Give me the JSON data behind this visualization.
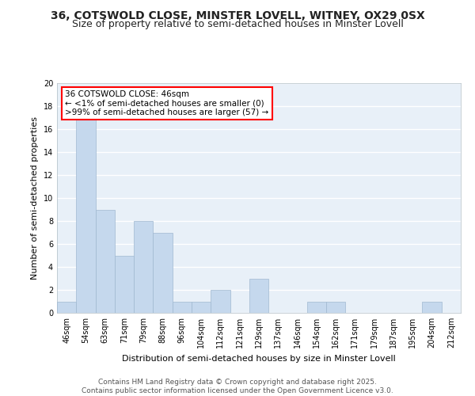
{
  "title": "36, COTSWOLD CLOSE, MINSTER LOVELL, WITNEY, OX29 0SX",
  "subtitle": "Size of property relative to semi-detached houses in Minster Lovell",
  "xlabel": "Distribution of semi-detached houses by size in Minster Lovell",
  "ylabel": "Number of semi-detached properties",
  "categories": [
    "46sqm",
    "54sqm",
    "63sqm",
    "71sqm",
    "79sqm",
    "88sqm",
    "96sqm",
    "104sqm",
    "112sqm",
    "121sqm",
    "129sqm",
    "137sqm",
    "146sqm",
    "154sqm",
    "162sqm",
    "171sqm",
    "179sqm",
    "187sqm",
    "195sqm",
    "204sqm",
    "212sqm"
  ],
  "values": [
    1,
    17,
    9,
    5,
    8,
    7,
    1,
    1,
    2,
    0,
    3,
    0,
    0,
    1,
    1,
    0,
    0,
    0,
    0,
    1,
    0
  ],
  "bar_color": "#c5d8ed",
  "bar_edge_color": "#a0b8d0",
  "annotation_box_text": "36 COTSWOLD CLOSE: 46sqm\n← <1% of semi-detached houses are smaller (0)\n>99% of semi-detached houses are larger (57) →",
  "annotation_box_color": "white",
  "annotation_box_edge_color": "red",
  "ylim": [
    0,
    20
  ],
  "yticks": [
    0,
    2,
    4,
    6,
    8,
    10,
    12,
    14,
    16,
    18,
    20
  ],
  "bg_color": "#e8f0f8",
  "grid_color": "white",
  "footer": "Contains HM Land Registry data © Crown copyright and database right 2025.\nContains public sector information licensed under the Open Government Licence v3.0.",
  "title_fontsize": 10,
  "subtitle_fontsize": 9,
  "xlabel_fontsize": 8,
  "ylabel_fontsize": 8,
  "tick_fontsize": 7,
  "annotation_fontsize": 7.5,
  "footer_fontsize": 6.5
}
